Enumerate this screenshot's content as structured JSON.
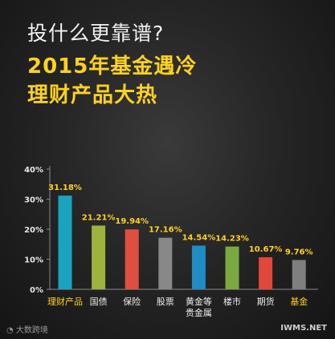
{
  "header": {
    "question": "投什么更靠谱?",
    "headline_1": "2015年基金遇冷",
    "headline_2": "理财产品大热"
  },
  "chart_data": {
    "type": "bar",
    "categories": [
      "理财产品",
      "国债",
      "保险",
      "股票",
      "黄金等\n贵金属",
      "楼市",
      "期货",
      "基金"
    ],
    "values": [
      31.18,
      21.21,
      19.94,
      17.16,
      14.54,
      14.23,
      10.67,
      9.76
    ],
    "value_labels": [
      "31.18%",
      "21.21%",
      "19.94%",
      "17.16%",
      "14.54%",
      "14.23%",
      "10.67%",
      "9.76%"
    ],
    "bar_colors": [
      "#1aa3bf",
      "#9db33c",
      "#e04e40",
      "#888888",
      "#1f8cc4",
      "#7aaa3f",
      "#e2473b",
      "#7f7f7f"
    ],
    "highlight_categories": [
      "理财产品",
      "基金"
    ],
    "highlight_color": "#ffd21f",
    "yticks": [
      "0%",
      "10%",
      "20%",
      "30%",
      "40%"
    ],
    "ylim": [
      0,
      40
    ],
    "title": "",
    "xlabel": "",
    "ylabel": ""
  },
  "footer": {
    "logo_text": "大数跨境",
    "watermark": "IWMS.NET"
  }
}
